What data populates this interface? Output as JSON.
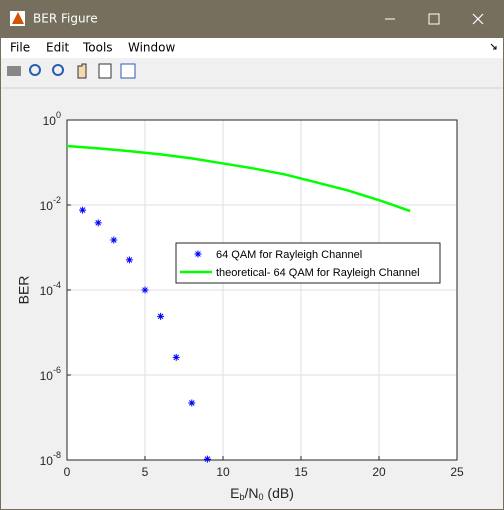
{
  "window": {
    "title": "BER Figure",
    "menu": [
      "File",
      "Edit",
      "Tools",
      "Window"
    ]
  },
  "chart_data": {
    "type": "line",
    "xlabel": "E_b/N_0 (dB)",
    "ylabel": "BER",
    "xlim": [
      0,
      25
    ],
    "xticks": [
      0,
      5,
      10,
      15,
      20,
      25
    ],
    "ylim": [
      1e-08,
      1
    ],
    "log_y": true,
    "yticks": [
      {
        "value": 1,
        "label": "10^0"
      },
      {
        "value": 0.01,
        "label": "10^-2"
      },
      {
        "value": 0.0001,
        "label": "10^-4"
      },
      {
        "value": 1e-06,
        "label": "10^-6"
      },
      {
        "value": 1e-08,
        "label": "10^-8"
      }
    ],
    "grid": true,
    "legend": "center-right",
    "series": [
      {
        "name": "64 QAM for Rayleigh Channel",
        "color": "#0000ff",
        "marker": "asterisk",
        "x": [
          1,
          2,
          3,
          4,
          5,
          6,
          7,
          8,
          9
        ],
        "values": [
          0.0076,
          0.0038,
          0.0015,
          0.00051,
          0.0001,
          2.4e-05,
          2.6e-06,
          2.2e-07,
          1.05e-08
        ]
      },
      {
        "name": "theoretical- 64 QAM for Rayleigh Channel",
        "color": "#00ff00",
        "marker": "line",
        "x": [
          0,
          2,
          4,
          6,
          8,
          10,
          12,
          14,
          16,
          18,
          20,
          22
        ],
        "values": [
          0.245,
          0.215,
          0.185,
          0.155,
          0.125,
          0.095,
          0.072,
          0.052,
          0.034,
          0.022,
          0.013,
          0.0072
        ]
      }
    ]
  }
}
